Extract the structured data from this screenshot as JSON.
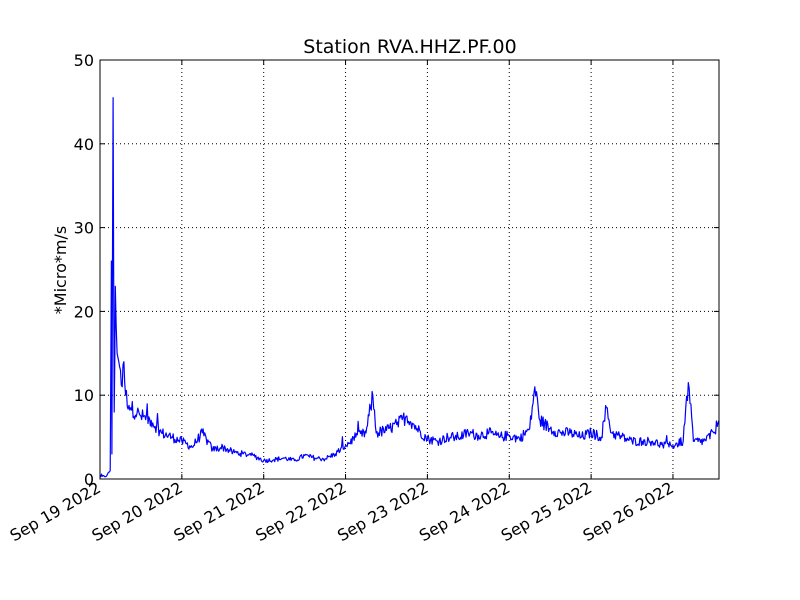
{
  "chart_data": {
    "type": "line",
    "title": "Station RVA.HHZ.PF.00",
    "xlabel": "",
    "ylabel": "*Micro*m/s",
    "x_unit": "days",
    "xlim": [
      "2022-09-19T00:00",
      "2022-09-26T13:30"
    ],
    "ylim": [
      0,
      50
    ],
    "y_ticks": [
      0,
      10,
      20,
      30,
      40,
      50
    ],
    "x_ticks": [
      {
        "value": "2022-09-19T00:00",
        "label": "Sep 19 2022"
      },
      {
        "value": "2022-09-20T00:00",
        "label": "Sep 20 2022"
      },
      {
        "value": "2022-09-21T00:00",
        "label": "Sep 21 2022"
      },
      {
        "value": "2022-09-22T00:00",
        "label": "Sep 22 2022"
      },
      {
        "value": "2022-09-23T00:00",
        "label": "Sep 23 2022"
      },
      {
        "value": "2022-09-24T00:00",
        "label": "Sep 24 2022"
      },
      {
        "value": "2022-09-25T00:00",
        "label": "Sep 25 2022"
      },
      {
        "value": "2022-09-26T00:00",
        "label": "Sep 26 2022"
      }
    ],
    "grid": true,
    "series": [
      {
        "color": "#0000ff",
        "points": [
          [
            "2022-09-19T00:00",
            0.2
          ],
          [
            "2022-09-19T02:00",
            0.4
          ],
          [
            "2022-09-19T03:00",
            1.0
          ],
          [
            "2022-09-19T03:20",
            26.0
          ],
          [
            "2022-09-19T03:30",
            3.0
          ],
          [
            "2022-09-19T03:50",
            45.5
          ],
          [
            "2022-09-19T04:10",
            8.0
          ],
          [
            "2022-09-19T04:30",
            23.0
          ],
          [
            "2022-09-19T05:00",
            15.0
          ],
          [
            "2022-09-19T05:30",
            14.0
          ],
          [
            "2022-09-19T06:00",
            13.0
          ],
          [
            "2022-09-19T06:30",
            11.0
          ],
          [
            "2022-09-19T07:00",
            14.0
          ],
          [
            "2022-09-19T07:30",
            10.0
          ],
          [
            "2022-09-19T09:00",
            8.5
          ],
          [
            "2022-09-19T12:00",
            7.5
          ],
          [
            "2022-09-19T15:00",
            7.0
          ],
          [
            "2022-09-19T18:00",
            5.5
          ],
          [
            "2022-09-19T21:00",
            5.0
          ],
          [
            "2022-09-20T00:00",
            4.5
          ],
          [
            "2022-09-20T03:00",
            3.8
          ],
          [
            "2022-09-20T06:00",
            5.5
          ],
          [
            "2022-09-20T09:00",
            3.5
          ],
          [
            "2022-09-20T12:00",
            3.8
          ],
          [
            "2022-09-20T15:00",
            3.2
          ],
          [
            "2022-09-20T18:00",
            3.0
          ],
          [
            "2022-09-20T21:00",
            2.8
          ],
          [
            "2022-09-21T00:00",
            2.2
          ],
          [
            "2022-09-21T03:00",
            2.3
          ],
          [
            "2022-09-21T06:00",
            2.5
          ],
          [
            "2022-09-21T09:00",
            2.2
          ],
          [
            "2022-09-21T12:00",
            2.8
          ],
          [
            "2022-09-21T15:00",
            2.5
          ],
          [
            "2022-09-21T18:00",
            2.4
          ],
          [
            "2022-09-21T21:00",
            3.0
          ],
          [
            "2022-09-22T00:00",
            4.0
          ],
          [
            "2022-09-22T03:00",
            5.0
          ],
          [
            "2022-09-22T06:00",
            5.5
          ],
          [
            "2022-09-22T08:00",
            10.0
          ],
          [
            "2022-09-22T09:00",
            5.5
          ],
          [
            "2022-09-22T12:00",
            5.8
          ],
          [
            "2022-09-22T15:00",
            6.5
          ],
          [
            "2022-09-22T18:00",
            7.5
          ],
          [
            "2022-09-22T21:00",
            6.0
          ],
          [
            "2022-09-23T00:00",
            4.8
          ],
          [
            "2022-09-23T03:00",
            4.5
          ],
          [
            "2022-09-23T06:00",
            5.0
          ],
          [
            "2022-09-23T09:00",
            5.0
          ],
          [
            "2022-09-23T12:00",
            5.5
          ],
          [
            "2022-09-23T15:00",
            5.2
          ],
          [
            "2022-09-23T18:00",
            5.5
          ],
          [
            "2022-09-23T21:00",
            5.0
          ],
          [
            "2022-09-24T00:00",
            5.2
          ],
          [
            "2022-09-24T03:00",
            4.8
          ],
          [
            "2022-09-24T06:00",
            6.0
          ],
          [
            "2022-09-24T07:30",
            11.0
          ],
          [
            "2022-09-24T09:00",
            7.0
          ],
          [
            "2022-09-24T12:00",
            6.0
          ],
          [
            "2022-09-24T15:00",
            5.5
          ],
          [
            "2022-09-24T18:00",
            5.5
          ],
          [
            "2022-09-24T21:00",
            5.0
          ],
          [
            "2022-09-25T00:00",
            5.5
          ],
          [
            "2022-09-25T03:00",
            5.0
          ],
          [
            "2022-09-25T04:30",
            8.5
          ],
          [
            "2022-09-25T06:00",
            5.5
          ],
          [
            "2022-09-25T09:00",
            5.0
          ],
          [
            "2022-09-25T12:00",
            4.5
          ],
          [
            "2022-09-25T15:00",
            4.5
          ],
          [
            "2022-09-25T18:00",
            4.5
          ],
          [
            "2022-09-25T21:00",
            4.0
          ],
          [
            "2022-09-26T00:00",
            4.0
          ],
          [
            "2022-09-26T03:00",
            4.5
          ],
          [
            "2022-09-26T04:30",
            11.5
          ],
          [
            "2022-09-26T06:00",
            4.5
          ],
          [
            "2022-09-26T09:00",
            4.5
          ],
          [
            "2022-09-26T12:00",
            5.5
          ],
          [
            "2022-09-26T13:30",
            7.0
          ]
        ]
      }
    ]
  }
}
